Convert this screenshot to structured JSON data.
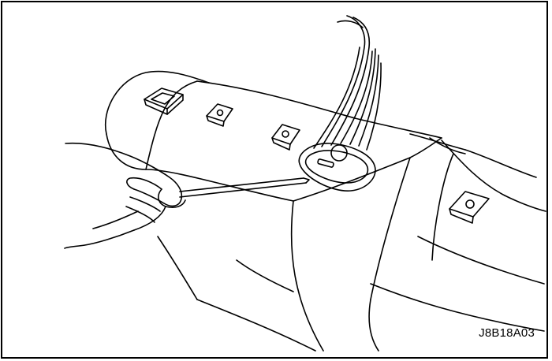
{
  "figure": {
    "code": "J8B18A03"
  },
  "colors": {
    "line": "#000000",
    "background": "#ffffff"
  }
}
